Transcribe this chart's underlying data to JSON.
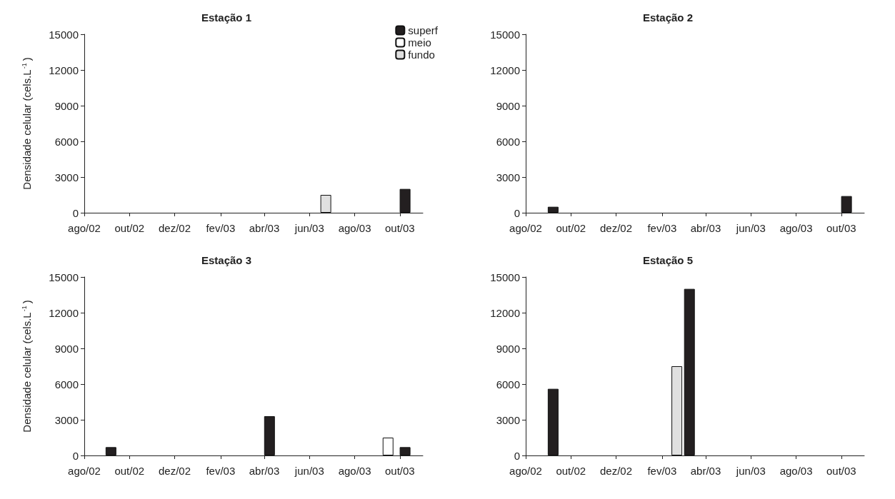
{
  "chart_data": [
    {
      "type": "bar",
      "title": "Estação 1",
      "ylabel": "Densidade celular (cels.L$^{-1}$)",
      "x": [
        "2003-06-23",
        "2003-10-08"
      ],
      "series": [
        {
          "name": "superf",
          "color": "#231f20",
          "values": [
            null,
            2000
          ]
        },
        {
          "name": "meio",
          "color": "#ffffff",
          "values": [
            null,
            null
          ]
        },
        {
          "name": "fundo",
          "color": "#e0e0e0",
          "values": [
            1500,
            null
          ]
        }
      ],
      "xlim": [
        "2002-08-01",
        "2003-11-01"
      ],
      "xticks": [
        {
          "value": "2002-08-01",
          "label": "ago/02"
        },
        {
          "value": "2002-10-01",
          "label": "out/02"
        },
        {
          "value": "2002-12-01",
          "label": "dez/02"
        },
        {
          "value": "2003-02-01",
          "label": "fev/03"
        },
        {
          "value": "2003-04-01",
          "label": "abr/03"
        },
        {
          "value": "2003-06-01",
          "label": "jun/03"
        },
        {
          "value": "2003-08-01",
          "label": "ago/03"
        },
        {
          "value": "2003-10-01",
          "label": "out/03"
        }
      ],
      "ylim": [
        0,
        15000
      ],
      "yticks": [
        0,
        3000,
        6000,
        9000,
        12000,
        15000
      ],
      "grid": false,
      "legend": "top right"
    },
    {
      "type": "bar",
      "title": "Estação 2",
      "x": [
        "2002-09-07",
        "2003-10-08"
      ],
      "series": [
        {
          "color": "#231f20",
          "values": [
            500,
            1400
          ]
        }
      ],
      "xlim": [
        "2002-08-01",
        "2003-11-01"
      ],
      "xticks": [
        {
          "value": "2002-08-01",
          "label": "ago/02"
        },
        {
          "value": "2002-10-01",
          "label": "out/02"
        },
        {
          "value": "2002-12-01",
          "label": "dez/02"
        },
        {
          "value": "2003-02-01",
          "label": "fev/03"
        },
        {
          "value": "2003-04-01",
          "label": "abr/03"
        },
        {
          "value": "2003-06-01",
          "label": "jun/03"
        },
        {
          "value": "2003-08-01",
          "label": "ago/03"
        },
        {
          "value": "2003-10-01",
          "label": "out/03"
        }
      ],
      "ylim": [
        0,
        15000
      ],
      "yticks": [
        0,
        3000,
        6000,
        9000,
        12000,
        15000
      ],
      "grid": false,
      "legend": false
    },
    {
      "type": "bar",
      "title": "Estação 3",
      "ylabel": "Densidade celular (cels.L$^{-1}$)",
      "x": [
        "2002-09-06",
        "2003-04-08",
        "2003-09-15",
        "2003-10-08"
      ],
      "series": [
        {
          "color": "#231f20",
          "values": [
            700,
            3300,
            null,
            700
          ]
        },
        {
          "color": "#ffffff",
          "values": [
            null,
            null,
            1500,
            null
          ]
        }
      ],
      "xlim": [
        "2002-08-01",
        "2003-11-01"
      ],
      "xticks": [
        {
          "value": "2002-08-01",
          "label": "ago/02"
        },
        {
          "value": "2002-10-01",
          "label": "out/02"
        },
        {
          "value": "2002-12-01",
          "label": "dez/02"
        },
        {
          "value": "2003-02-01",
          "label": "fev/03"
        },
        {
          "value": "2003-04-01",
          "label": "abr/03"
        },
        {
          "value": "2003-06-01",
          "label": "jun/03"
        },
        {
          "value": "2003-08-01",
          "label": "ago/03"
        },
        {
          "value": "2003-10-01",
          "label": "out/03"
        }
      ],
      "ylim": [
        0,
        15000
      ],
      "yticks": [
        0,
        3000,
        6000,
        9000,
        12000,
        15000
      ],
      "grid": false,
      "legend": false
    },
    {
      "type": "bar",
      "title": "Estação 5",
      "x": [
        "2002-09-07",
        "2003-02-21",
        "2003-03-10"
      ],
      "series": [
        {
          "color": "#231f20",
          "values": [
            5600,
            null,
            14000
          ]
        },
        {
          "color": "#e0e0e0",
          "values": [
            null,
            7500,
            null
          ]
        }
      ],
      "xlim": [
        "2002-08-01",
        "2003-11-01"
      ],
      "xticks": [
        {
          "value": "2002-08-01",
          "label": "ago/02"
        },
        {
          "value": "2002-10-01",
          "label": "out/02"
        },
        {
          "value": "2002-12-01",
          "label": "dez/02"
        },
        {
          "value": "2003-02-01",
          "label": "fev/03"
        },
        {
          "value": "2003-04-01",
          "label": "abr/03"
        },
        {
          "value": "2003-06-01",
          "label": "jun/03"
        },
        {
          "value": "2003-08-01",
          "label": "ago/03"
        },
        {
          "value": "2003-10-01",
          "label": "out/03"
        }
      ],
      "ylim": [
        0,
        15000
      ],
      "yticks": [
        0,
        3000,
        6000,
        9000,
        12000,
        15000
      ],
      "grid": false,
      "legend": false
    }
  ]
}
